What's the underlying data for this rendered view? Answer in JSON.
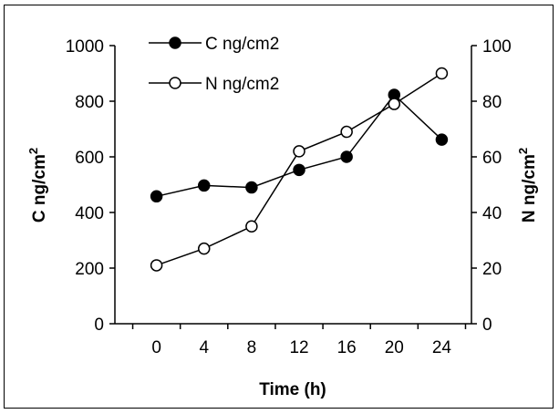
{
  "chart_data": {
    "type": "line",
    "x": [
      0,
      4,
      8,
      12,
      16,
      20,
      24
    ],
    "series": [
      {
        "name": "C ng/cm2",
        "axis": "left",
        "marker": "filled-circle",
        "color": "#000000",
        "values": [
          458,
          497,
          490,
          553,
          600,
          823,
          662
        ]
      },
      {
        "name": "N ng/cm2",
        "axis": "right",
        "marker": "open-circle",
        "color": "#000000",
        "values": [
          21,
          27,
          35,
          62,
          69,
          79,
          90
        ]
      }
    ],
    "xlabel": "Time (h)",
    "ylabel_left": {
      "main": "C ng/cm",
      "sup": "2"
    },
    "ylabel_right": {
      "main": "N ng/cm",
      "sup": "2"
    },
    "xlim": [
      -3.5,
      26.5
    ],
    "ylim_left": [
      0,
      1000
    ],
    "ylim_right": [
      0,
      100
    ],
    "xticks": [
      "0",
      "4",
      "8",
      "12",
      "16",
      "20",
      "24"
    ],
    "yticks_left": [
      "0",
      "200",
      "400",
      "600",
      "800",
      "1000"
    ],
    "yticks_right": [
      "0",
      "20",
      "40",
      "60",
      "80",
      "100"
    ],
    "grid": false,
    "legend_position": "top-left"
  }
}
